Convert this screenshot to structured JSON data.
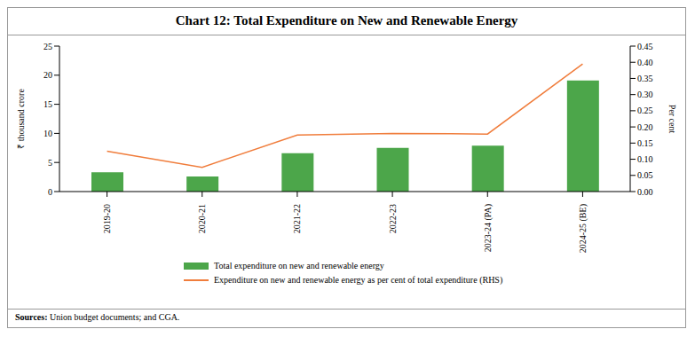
{
  "chart_data": {
    "type": "bar",
    "title": "Chart 12: Total Expenditure on New and Renewable Energy",
    "categories": [
      "2019-20",
      "2020-21",
      "2021-22",
      "2022-23",
      "2023-24 (PA)",
      "2024-25 (BE)"
    ],
    "series": [
      {
        "name": "Total expenditure on new and renewable energy",
        "type": "bar",
        "color": "#4ca64a",
        "values": [
          3.3,
          2.6,
          6.6,
          7.5,
          7.9,
          19.1
        ]
      },
      {
        "name": "Expenditure on new and renewable energy as per cent of total expenditure (RHS)",
        "type": "line",
        "color": "#f07d3c",
        "axis": "y2",
        "values": [
          0.125,
          0.075,
          0.175,
          0.18,
          0.178,
          0.395
        ]
      }
    ],
    "y_label": "₹ thousand crore",
    "y2_label": "Per cent",
    "ylim": [
      0,
      25
    ],
    "yticks": [
      0,
      5,
      10,
      15,
      20,
      25
    ],
    "y2lim": [
      0,
      0.45
    ],
    "y2ticks": [
      {
        "value": 0,
        "label": "0.00"
      },
      {
        "value": 0.05,
        "label": "0.05"
      },
      {
        "value": 0.1,
        "label": "0.10"
      },
      {
        "value": 0.15,
        "label": "0.15"
      },
      {
        "value": 0.2,
        "label": "0.20"
      },
      {
        "value": 0.25,
        "label": "0.25"
      },
      {
        "value": 0.3,
        "label": "0.30"
      },
      {
        "value": 0.35,
        "label": "0.35"
      },
      {
        "value": 0.4,
        "label": "0.40"
      },
      {
        "value": 0.45,
        "label": "0.45"
      }
    ],
    "grid": false,
    "source": "Sources: Union budget documents; and CGA."
  }
}
